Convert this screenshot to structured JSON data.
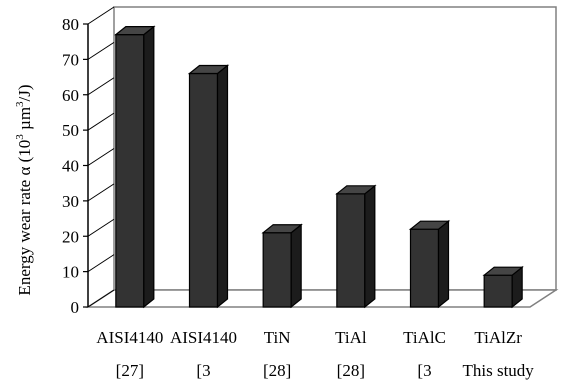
{
  "chart_data": {
    "type": "bar",
    "title": "",
    "xlabel": "",
    "ylabel": "Energy wear rate α (10³ µm³/J)",
    "ylabel_parts": [
      "Energy wear rate α (10",
      "3",
      " µm",
      "3",
      "/J)"
    ],
    "ylim": [
      0,
      80
    ],
    "yticks": [
      0,
      10,
      20,
      30,
      40,
      50,
      60,
      70,
      80
    ],
    "grid": false,
    "style": "3d-column",
    "bar_color": "#333333",
    "categories": [
      {
        "line1": "AISI4140",
        "line2": "[27]"
      },
      {
        "line1": "AISI4140",
        "line2": "[3"
      },
      {
        "line1": "TiN",
        "line2": "[28]"
      },
      {
        "line1": "TiAl",
        "line2": "[28]"
      },
      {
        "line1": "TiAlC",
        "line2": "[3"
      },
      {
        "line1": "TiAlZr",
        "line2": "This study"
      }
    ],
    "values": [
      77,
      66,
      21,
      32,
      22,
      9
    ]
  }
}
